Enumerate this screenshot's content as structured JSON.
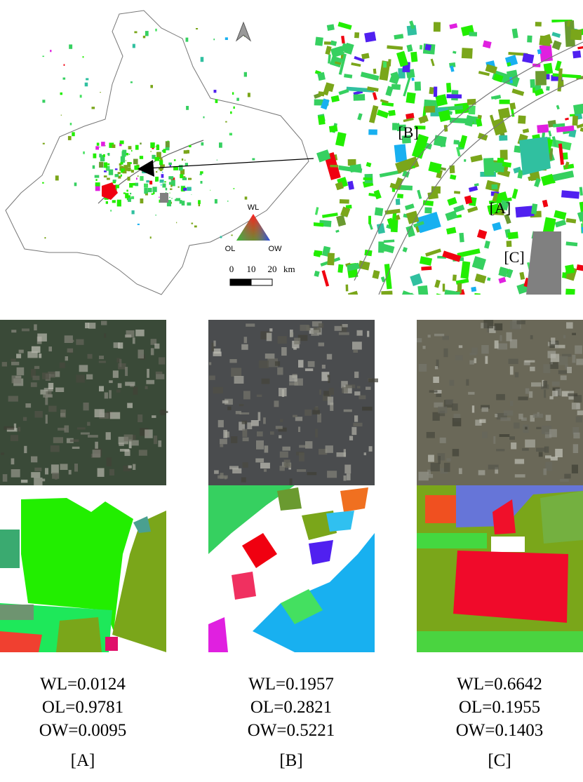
{
  "map": {
    "legend": {
      "top": "WL",
      "left": "OL",
      "right": "OW"
    },
    "scale": {
      "ticks": [
        "0",
        "10",
        "20"
      ],
      "unit": "km"
    }
  },
  "inset": {
    "labels": [
      "[B]",
      "[A]",
      "[C]"
    ]
  },
  "panels": [
    {
      "label": "[A]",
      "stats": [
        "WL=0.0124",
        "OL=0.9781",
        "OW=0.0095"
      ]
    },
    {
      "label": "[B]",
      "stats": [
        "WL=0.1957",
        "OL=0.2821",
        "OW=0.5221"
      ]
    },
    {
      "label": "[C]",
      "stats": [
        "WL=0.6642",
        "OL=0.1955",
        "OW=0.1403"
      ]
    }
  ]
}
